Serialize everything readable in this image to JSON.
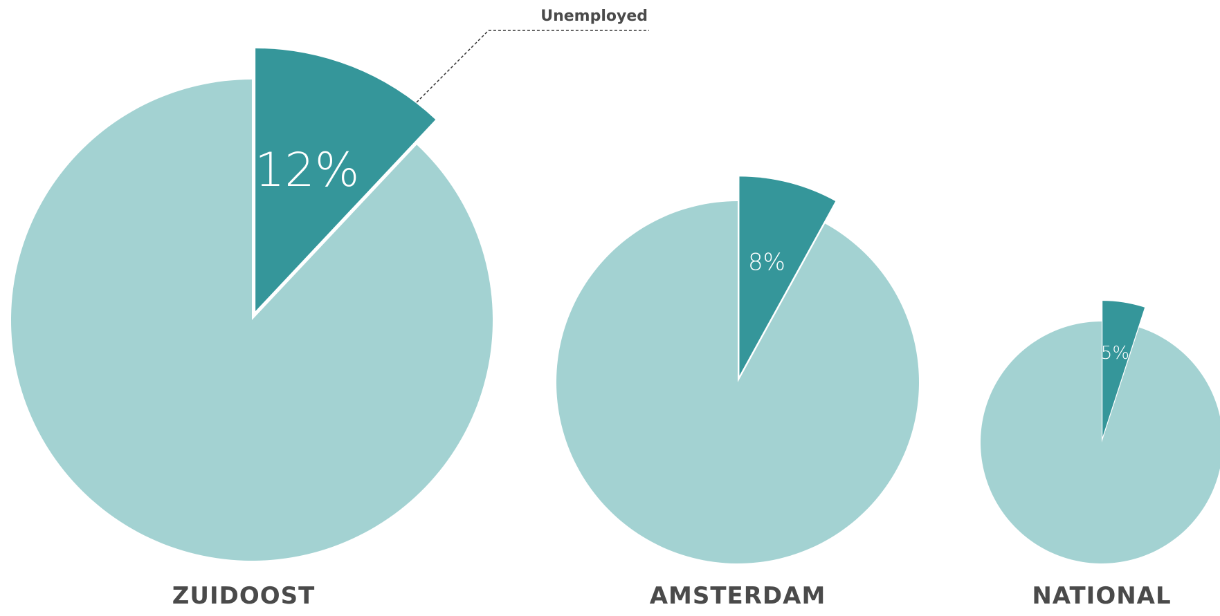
{
  "chart_data": {
    "type": "pie",
    "legend": "Unemployed",
    "colors": {
      "unemployed": "#35969a",
      "rest": "#a3d2d2"
    },
    "pies": [
      {
        "label": "ZUIDOOST",
        "value": 12,
        "value_label": "12%"
      },
      {
        "label": "AMSTERDAM",
        "value": 8,
        "value_label": "8%"
      },
      {
        "label": "NATIONAL",
        "value": 5,
        "value_label": "5%"
      }
    ]
  }
}
